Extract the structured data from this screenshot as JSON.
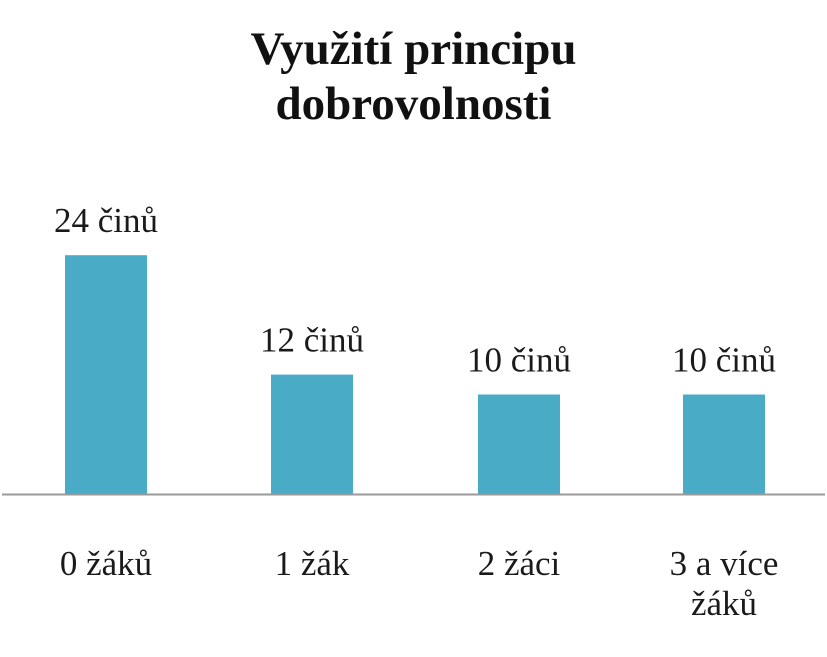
{
  "chart_data": {
    "type": "bar",
    "title_lines": [
      "Využití principu",
      "dobrovolnosti"
    ],
    "categories": [
      [
        "0 žáků"
      ],
      [
        "1 žák"
      ],
      [
        "2 žáci"
      ],
      [
        "3 a více",
        "žáků"
      ]
    ],
    "values": [
      24,
      12,
      10,
      10
    ],
    "value_labels": [
      "24 činů",
      "12 činů",
      "10 činů",
      "10 činů"
    ],
    "bar_color": "#4aabc6",
    "axis_color": "#9a9a9a",
    "grid": false,
    "legend": "none",
    "xlabel": "",
    "ylabel": ""
  }
}
